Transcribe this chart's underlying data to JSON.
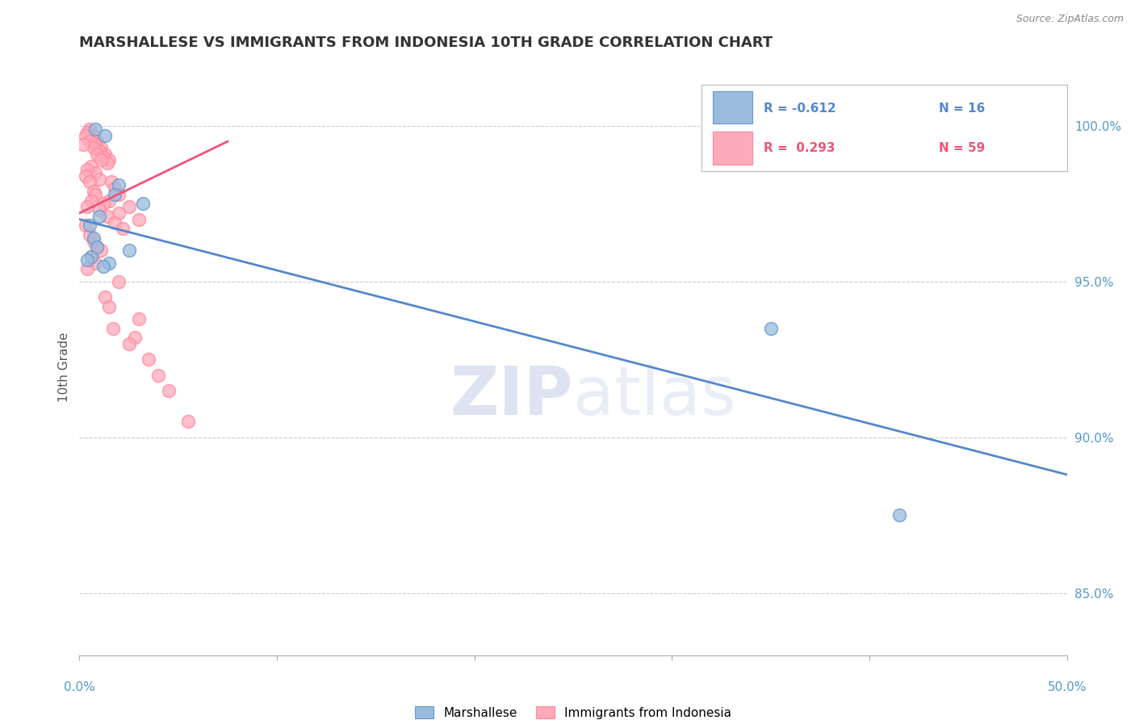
{
  "title": "MARSHALLESE VS IMMIGRANTS FROM INDONESIA 10TH GRADE CORRELATION CHART",
  "source_text": "Source: ZipAtlas.com",
  "ylabel": "10th Grade",
  "xlim": [
    0.0,
    50.0
  ],
  "ylim": [
    83.0,
    101.5
  ],
  "yticks": [
    85.0,
    90.0,
    95.0,
    100.0
  ],
  "ytick_labels": [
    "85.0%",
    "90.0%",
    "95.0%",
    "100.0%"
  ],
  "legend_blue_r": "R = -0.612",
  "legend_blue_n": "N = 16",
  "legend_pink_r": "R =  0.293",
  "legend_pink_n": "N = 59",
  "blue_color": "#99BBDD",
  "pink_color": "#FFAABB",
  "blue_scatter_edge": "#6699CC",
  "pink_scatter_edge": "#FF8899",
  "blue_line_color": "#5588CC",
  "pink_line_color": "#EE5577",
  "tick_color": "#5599CC",
  "watermark_color": "#C8D8EE",
  "blue_scatter_x": [
    0.8,
    1.3,
    2.0,
    1.8,
    3.2,
    1.0,
    0.5,
    0.7,
    2.5,
    1.5,
    0.6,
    0.9,
    1.2,
    0.4,
    41.5,
    35.0
  ],
  "blue_scatter_y": [
    99.9,
    99.7,
    98.1,
    97.8,
    97.5,
    97.1,
    96.8,
    96.4,
    96.0,
    95.6,
    95.8,
    96.1,
    95.5,
    95.7,
    87.5,
    93.5
  ],
  "pink_scatter_x": [
    0.5,
    0.7,
    0.9,
    1.1,
    1.3,
    1.5,
    0.6,
    0.8,
    1.0,
    1.2,
    1.4,
    0.4,
    0.3,
    0.5,
    0.7,
    0.9,
    1.1,
    0.6,
    0.8,
    1.0,
    0.4,
    0.2,
    1.6,
    1.8,
    2.0,
    2.5,
    3.0,
    0.3,
    0.5,
    0.7,
    1.5,
    2.0,
    1.2,
    0.8,
    0.6,
    0.4,
    1.0,
    1.4,
    1.8,
    2.2,
    0.3,
    0.5,
    0.7,
    0.9,
    1.1,
    0.6,
    0.8,
    0.4,
    1.3,
    1.7,
    2.8,
    3.5,
    4.5,
    5.5,
    2.0,
    3.0,
    1.5,
    2.5,
    4.0
  ],
  "pink_scatter_y": [
    99.9,
    99.7,
    99.5,
    99.3,
    99.1,
    98.9,
    99.6,
    99.4,
    99.2,
    99.0,
    98.8,
    99.8,
    99.7,
    99.5,
    99.3,
    99.1,
    98.9,
    98.7,
    98.5,
    98.3,
    98.6,
    99.4,
    98.2,
    98.0,
    97.8,
    97.4,
    97.0,
    98.4,
    98.2,
    97.9,
    97.6,
    97.2,
    97.5,
    97.8,
    97.6,
    97.4,
    97.3,
    97.1,
    96.9,
    96.7,
    96.8,
    96.5,
    96.3,
    96.1,
    96.0,
    95.8,
    95.6,
    95.4,
    94.5,
    93.5,
    93.2,
    92.5,
    91.5,
    90.5,
    95.0,
    93.8,
    94.2,
    93.0,
    92.0
  ],
  "blue_trend_x": [
    0.0,
    50.0
  ],
  "blue_trend_y": [
    97.0,
    88.8
  ],
  "pink_trend_x": [
    0.0,
    7.5
  ],
  "pink_trend_y": [
    97.2,
    99.5
  ],
  "bg_color": "#FFFFFF",
  "grid_color": "#CCCCCC"
}
